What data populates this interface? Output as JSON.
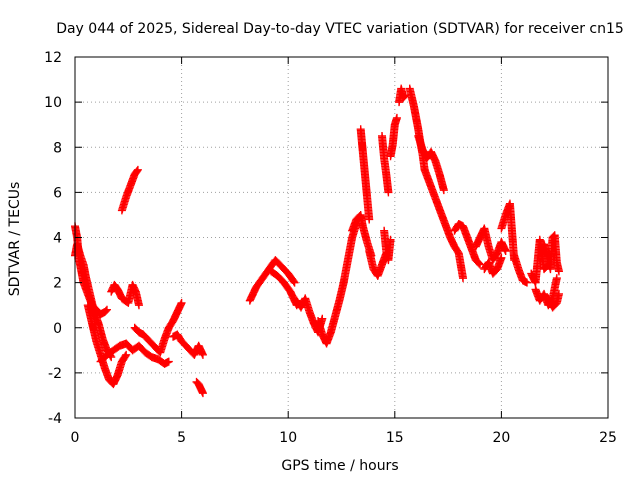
{
  "chart_data": {
    "type": "scatter",
    "title": "Day 044 of 2025, Sidereal Day-to-day VTEC variation (SDTVAR) for receiver cn15",
    "xlabel": "GPS time / hours",
    "ylabel": "SDTVAR / TECUs",
    "xlim": [
      0,
      25
    ],
    "ylim": [
      -4,
      12
    ],
    "xticks": [
      0,
      5,
      10,
      15,
      20,
      25
    ],
    "yticks": [
      -4,
      -2,
      0,
      2,
      4,
      6,
      8,
      10,
      12
    ],
    "grid": true,
    "marker": "plus",
    "series": [
      {
        "name": "SDTVAR",
        "color": "#ff0000",
        "traces": [
          {
            "x": [
              0,
              0.1,
              0.2,
              0.3,
              0.4,
              0.6,
              0.8,
              1.0,
              1.2,
              1.4,
              1.5
            ],
            "y": [
              4.5,
              4.0,
              3.0,
              2.5,
              2.0,
              1.5,
              1.0,
              0.8,
              0.6,
              0.7,
              0.8
            ]
          },
          {
            "x": [
              0,
              0.1,
              0.25,
              0.4,
              0.5,
              0.7,
              0.9,
              1.1,
              1.3,
              1.5,
              1.7
            ],
            "y": [
              3.2,
              3.7,
              3.2,
              2.8,
              2.3,
              1.5,
              0.7,
              0.2,
              -0.5,
              -1.0,
              -1.3
            ]
          },
          {
            "x": [
              0.6,
              0.8,
              1.0,
              1.2,
              1.4,
              1.6,
              1.8,
              2.0,
              2.2,
              2.4
            ],
            "y": [
              1.0,
              0.2,
              -0.6,
              -1.2,
              -1.8,
              -2.3,
              -2.5,
              -2.1,
              -1.5,
              -1.2
            ]
          },
          {
            "x": [
              1.2,
              1.5,
              1.8,
              2.1,
              2.4,
              2.7,
              3.0,
              3.3,
              3.6,
              3.9,
              4.2,
              4.4
            ],
            "y": [
              -1.5,
              -1.2,
              -1.0,
              -0.8,
              -0.7,
              -1.0,
              -0.8,
              -1.1,
              -1.3,
              -1.4,
              -1.6,
              -1.5
            ]
          },
          {
            "x": [
              1.7,
              1.85,
              2.0,
              2.2,
              2.5,
              2.7,
              2.85,
              3.0
            ],
            "y": [
              1.6,
              1.9,
              1.7,
              1.3,
              1.1,
              1.9,
              1.6,
              1.0
            ]
          },
          {
            "x": [
              2.2,
              2.4,
              2.6,
              2.8,
              2.95
            ],
            "y": [
              5.2,
              5.8,
              6.3,
              6.8,
              7.0
            ]
          },
          {
            "x": [
              2.8,
              3.0,
              3.2,
              3.4,
              3.6,
              3.8,
              4.0,
              4.2,
              4.4,
              4.6,
              4.8,
              5.0
            ],
            "y": [
              0.0,
              -0.2,
              -0.3,
              -0.5,
              -0.7,
              -0.9,
              -1.1,
              -0.5,
              0.0,
              0.3,
              0.7,
              1.1
            ]
          },
          {
            "x": [
              4.6,
              4.8,
              5.0,
              5.2,
              5.4,
              5.6,
              5.8,
              6.0
            ],
            "y": [
              -0.4,
              -0.3,
              -0.6,
              -0.8,
              -1.0,
              -1.2,
              -0.8,
              -1.2
            ]
          },
          {
            "x": [
              5.7,
              5.8,
              5.9,
              6.0
            ],
            "y": [
              -2.4,
              -2.5,
              -2.7,
              -2.9
            ]
          },
          {
            "x": [
              8.2,
              8.5,
              8.8,
              9.1,
              9.4,
              9.7,
              10.0,
              10.3
            ],
            "y": [
              1.2,
              1.8,
              2.2,
              2.6,
              3.0,
              2.7,
              2.4,
              2.0
            ]
          },
          {
            "x": [
              9.2,
              9.5,
              9.8,
              10.1,
              10.4
            ],
            "y": [
              2.5,
              2.3,
              2.0,
              1.6,
              1.0
            ]
          },
          {
            "x": [
              10.4,
              10.6,
              10.8,
              11.0,
              11.2,
              11.4,
              11.6
            ],
            "y": [
              1.2,
              0.9,
              1.3,
              0.7,
              0.2,
              -0.2,
              0.4
            ]
          },
          {
            "x": [
              11.4,
              11.6,
              11.8,
              12.0,
              12.2,
              12.4,
              12.6,
              12.8,
              13.0,
              13.2
            ],
            "y": [
              0.3,
              -0.3,
              -0.7,
              -0.2,
              0.5,
              1.2,
              2.0,
              3.0,
              4.0,
              4.6
            ]
          },
          {
            "x": [
              13.0,
              13.2,
              13.4,
              13.5,
              13.7,
              13.9
            ],
            "y": [
              4.3,
              4.8,
              5.0,
              4.5,
              3.8,
              3.2
            ]
          },
          {
            "x": [
              13.4,
              13.5,
              13.6,
              13.7,
              13.8
            ],
            "y": [
              8.8,
              7.8,
              6.8,
              5.8,
              4.8
            ]
          },
          {
            "x": [
              13.8,
              14.0,
              14.2,
              14.4,
              14.6
            ],
            "y": [
              3.4,
              2.6,
              2.3,
              2.8,
              3.3
            ]
          },
          {
            "x": [
              14.4,
              14.5,
              14.6,
              14.7
            ],
            "y": [
              8.5,
              7.5,
              6.8,
              6.0
            ]
          },
          {
            "x": [
              14.5,
              14.6,
              14.7,
              14.8
            ],
            "y": [
              4.3,
              3.4,
              3.0,
              3.9
            ]
          },
          {
            "x": [
              14.8,
              14.9,
              15.0,
              15.1
            ],
            "y": [
              7.6,
              8.1,
              9.0,
              9.3
            ]
          },
          {
            "x": [
              15.2,
              15.3,
              15.4,
              15.5
            ],
            "y": [
              10.0,
              10.6,
              10.2,
              10.3
            ]
          },
          {
            "x": [
              15.7,
              15.8,
              15.9,
              16.0,
              16.1,
              16.2,
              16.3,
              16.4
            ],
            "y": [
              10.6,
              10.2,
              9.8,
              9.3,
              8.8,
              8.2,
              7.7,
              7.0
            ]
          },
          {
            "x": [
              16.1,
              16.3,
              16.5,
              16.7,
              16.9,
              17.1,
              17.3
            ],
            "y": [
              8.5,
              7.9,
              7.5,
              7.8,
              7.4,
              6.8,
              6.1
            ]
          },
          {
            "x": [
              16.4,
              16.6,
              16.8,
              17.0,
              17.2,
              17.4,
              17.6,
              17.8,
              18.0,
              18.2
            ],
            "y": [
              7.0,
              6.5,
              6.0,
              5.5,
              5.0,
              4.5,
              4.0,
              3.6,
              3.3,
              2.2
            ]
          },
          {
            "x": [
              17.8,
              18.0,
              18.2,
              18.4,
              18.6,
              18.8,
              19.0
            ],
            "y": [
              4.3,
              4.6,
              4.5,
              4.0,
              3.5,
              3.0,
              2.8
            ]
          },
          {
            "x": [
              18.8,
              19.0,
              19.2,
              19.4,
              19.6,
              19.8,
              20.0,
              20.2
            ],
            "y": [
              3.6,
              4.0,
              4.4,
              3.6,
              3.0,
              3.3,
              3.8,
              3.4
            ]
          },
          {
            "x": [
              19.2,
              19.4,
              19.6,
              19.8,
              20.0
            ],
            "y": [
              2.6,
              2.9,
              2.4,
              2.6,
              3.1
            ]
          },
          {
            "x": [
              20.0,
              20.2,
              20.4,
              20.6
            ],
            "y": [
              4.4,
              5.0,
              5.5,
              3.0
            ]
          },
          {
            "x": [
              20.6,
              20.8,
              21.0,
              21.2
            ],
            "y": [
              3.2,
              2.6,
              2.1,
              2.0
            ]
          },
          {
            "x": [
              21.4,
              21.6,
              21.8,
              22.0,
              22.2
            ],
            "y": [
              2.4,
              2.0,
              3.9,
              2.6,
              2.8
            ]
          },
          {
            "x": [
              21.6,
              21.8,
              22.0,
              22.2,
              22.4,
              22.6
            ],
            "y": [
              1.7,
              1.2,
              1.5,
              1.0,
              1.3,
              2.2
            ]
          },
          {
            "x": [
              22.0,
              22.1,
              22.2,
              22.3,
              22.4,
              22.5,
              22.6,
              22.7
            ],
            "y": [
              3.7,
              3.4,
              3.0,
              2.6,
              4.0,
              4.1,
              2.9,
              2.5
            ]
          },
          {
            "x": [
              22.2,
              22.4,
              22.6,
              22.7
            ],
            "y": [
              1.3,
              0.9,
              1.1,
              1.5
            ]
          }
        ]
      }
    ]
  }
}
